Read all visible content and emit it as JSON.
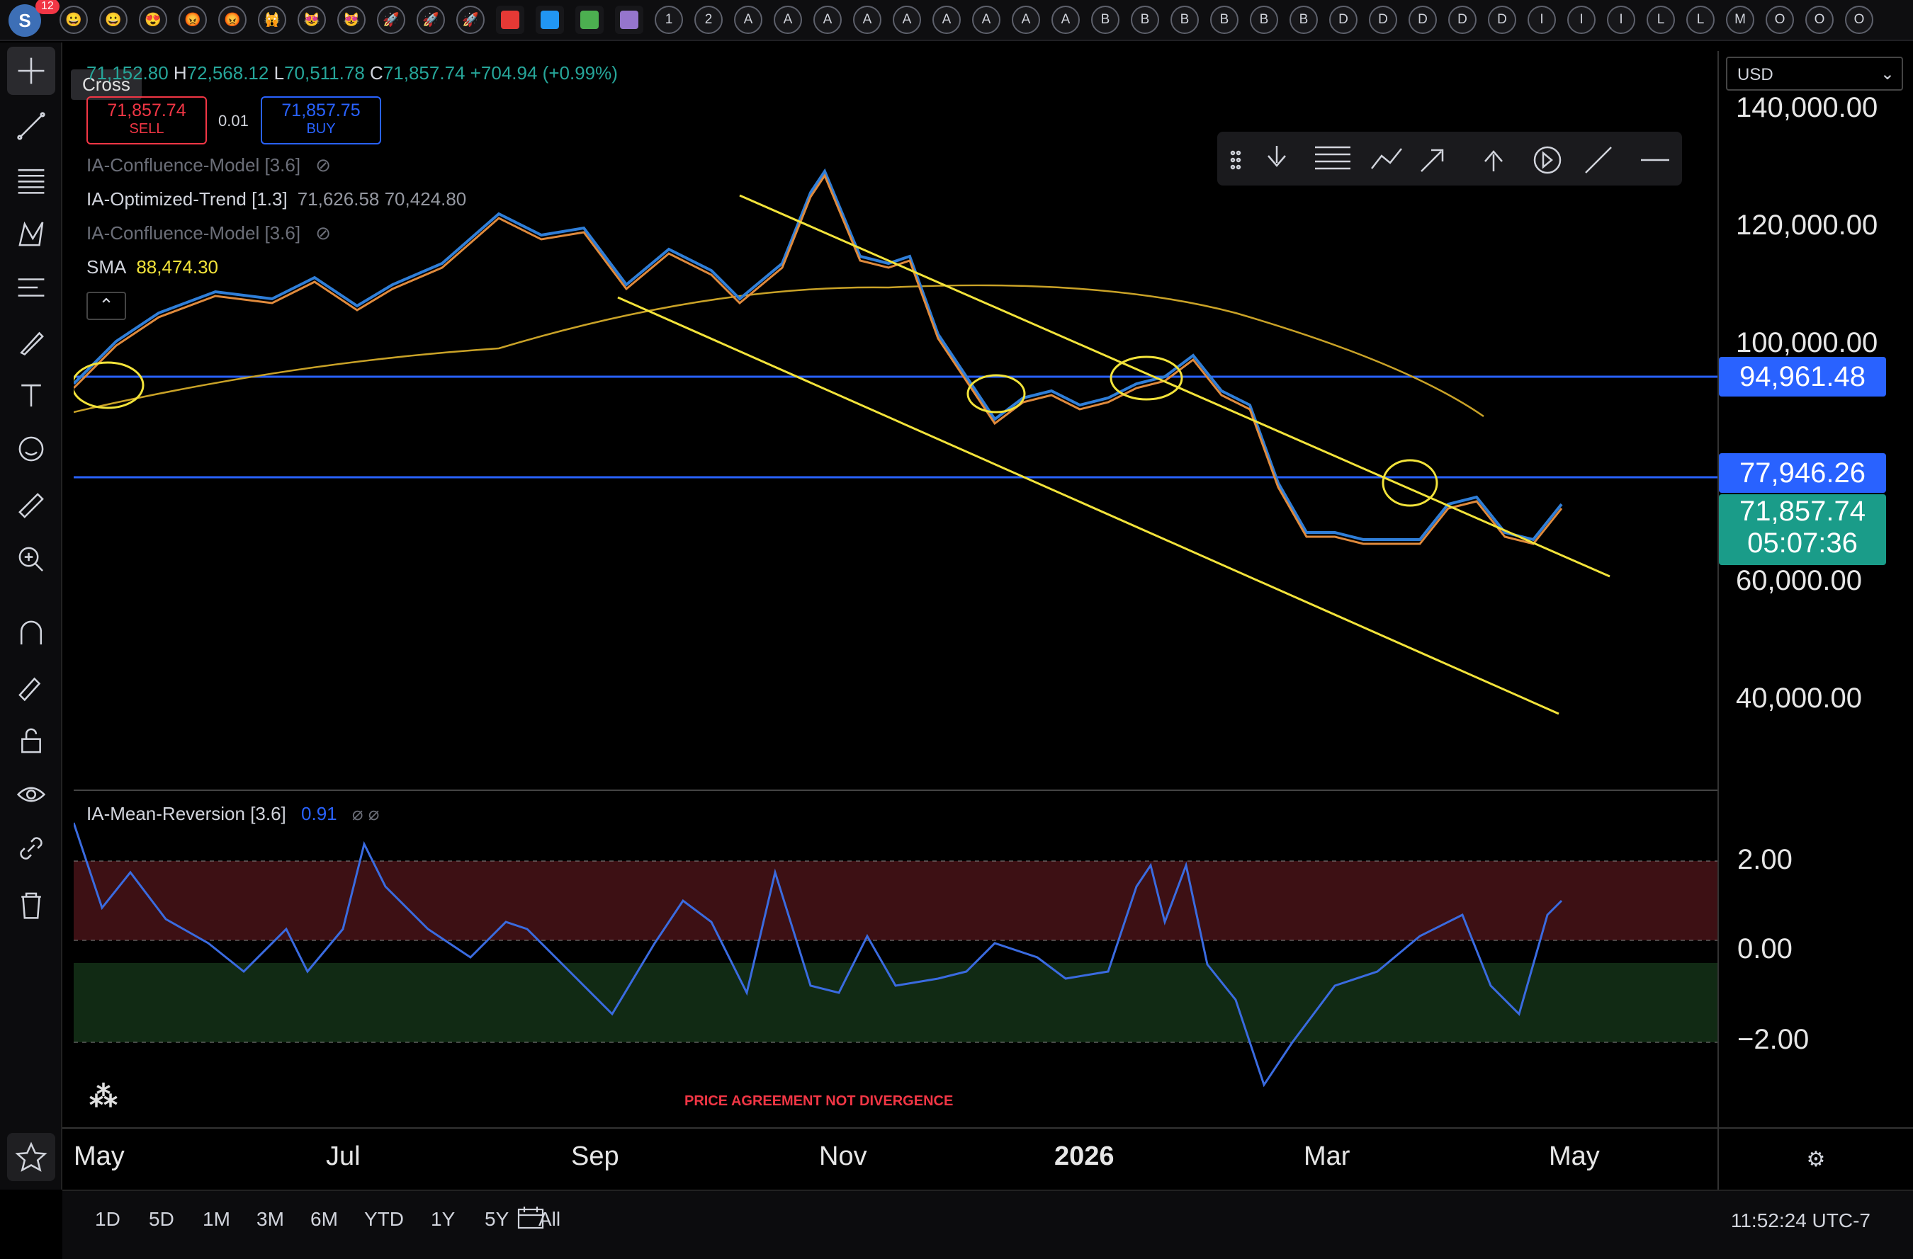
{
  "top_bar": {
    "notification_count": "12",
    "avatar_letter": "S",
    "icon_labels": [
      "1",
      "2",
      "A",
      "A",
      "A",
      "A",
      "A",
      "A",
      "A",
      "A",
      "A",
      "B",
      "B",
      "B",
      "B",
      "B",
      "B",
      "D",
      "D",
      "D",
      "D",
      "D",
      "I",
      "I",
      "I",
      "L",
      "L",
      "M",
      "O",
      "O",
      "O"
    ],
    "emoji_icons": [
      "😀",
      "😀",
      "😍",
      "😡",
      "😡",
      "🙀",
      "😻",
      "😻",
      "🚀",
      "🚀",
      "🚀"
    ],
    "swatch_colors": [
      "#e53935",
      "#2196f3",
      "#4caf50",
      "#9575cd"
    ]
  },
  "tooltip": {
    "label": "Cross"
  },
  "symbol_legend": {
    "open": "71,152.80",
    "high_label": "H",
    "high": "72,568.12",
    "low_label": "L",
    "low": "70,511.78",
    "close_label": "C",
    "close": "71,857.74",
    "change": "+704.94 (+0.99%)"
  },
  "trade": {
    "sell_price": "71,857.74",
    "sell_label": "SELL",
    "spread": "0.01",
    "buy_price": "71,857.75",
    "buy_label": "BUY"
  },
  "indicators": [
    {
      "name": "IA-Confluence-Model [3.6]",
      "values": "",
      "hidden": true
    },
    {
      "name": "IA-Optimized-Trend [1.3]",
      "values": "71,626.58  70,424.80",
      "hidden": false
    },
    {
      "name": "IA-Confluence-Model [3.6]",
      "values": "",
      "hidden": true
    },
    {
      "name": "SMA",
      "values": "88,474.30",
      "hidden": false
    }
  ],
  "currency": "USD",
  "price_axis": {
    "labels": [
      "140,000.00",
      "120,000.00",
      "100,000.00",
      "60,000.00",
      "40,000.00"
    ],
    "level_tag_1": "94,961.48",
    "level_tag_2": "77,946.26",
    "last_price": "71,857.74",
    "countdown": "05:07:36"
  },
  "oscillator": {
    "name": "IA-Mean-Reversion [3.6]",
    "value": "0.91",
    "axis_labels": [
      "2.00",
      "0.00",
      "−2.00"
    ]
  },
  "annotation_text": "PRICE AGREEMENT NOT DIVERGENCE",
  "time_axis": [
    "May",
    "Jul",
    "Sep",
    "Nov",
    "2026",
    "Mar",
    "May"
  ],
  "timeframes": [
    "1D",
    "5D",
    "1M",
    "3M",
    "6M",
    "YTD",
    "1Y",
    "5Y",
    "All"
  ],
  "clock": "11:52:24 UTC-7",
  "colors": {
    "up": "#26a69a",
    "down": "#ef5350",
    "level": "#2962ff",
    "channel": "#f2e33a",
    "sma": "#c9a227",
    "last_price_tag": "#1a9c89"
  }
}
